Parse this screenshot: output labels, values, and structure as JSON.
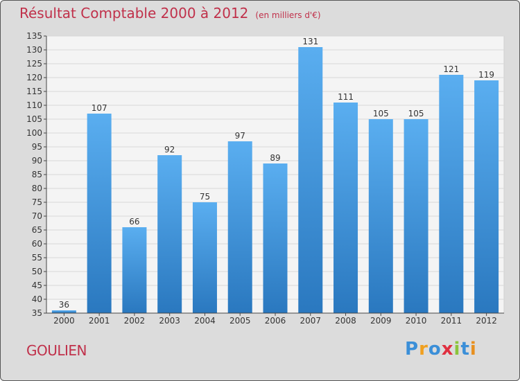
{
  "header": {
    "title": "Résultat Comptable 2000 à 2012",
    "subtitle": "(en milliers d'€)"
  },
  "place_name": "GOULIEN",
  "logo": {
    "letters": [
      "P",
      "r",
      "o",
      "x",
      "i",
      "t",
      "i"
    ],
    "colors": [
      "#3b8fd8",
      "#f0a020",
      "#3b8fd8",
      "#e03040",
      "#8cc43c",
      "#3b8fd8",
      "#e89020"
    ]
  },
  "colors": {
    "title": "#c0304a",
    "bar_light": "#5aaef0",
    "bar_dark": "#2a78bf",
    "plot_bg": "#f4f4f4"
  },
  "chart_data": {
    "type": "bar",
    "title": "Résultat Comptable 2000 à 2012",
    "subtitle": "(en milliers d'€)",
    "categories": [
      "2000",
      "2001",
      "2002",
      "2003",
      "2004",
      "2005",
      "2006",
      "2007",
      "2008",
      "2009",
      "2010",
      "2011",
      "2012"
    ],
    "values": [
      36,
      107,
      66,
      92,
      75,
      97,
      89,
      131,
      111,
      105,
      105,
      121,
      119
    ],
    "ylim": [
      35,
      135
    ],
    "ytick_step": 5,
    "xlabel": "",
    "ylabel": "",
    "grid": true
  }
}
